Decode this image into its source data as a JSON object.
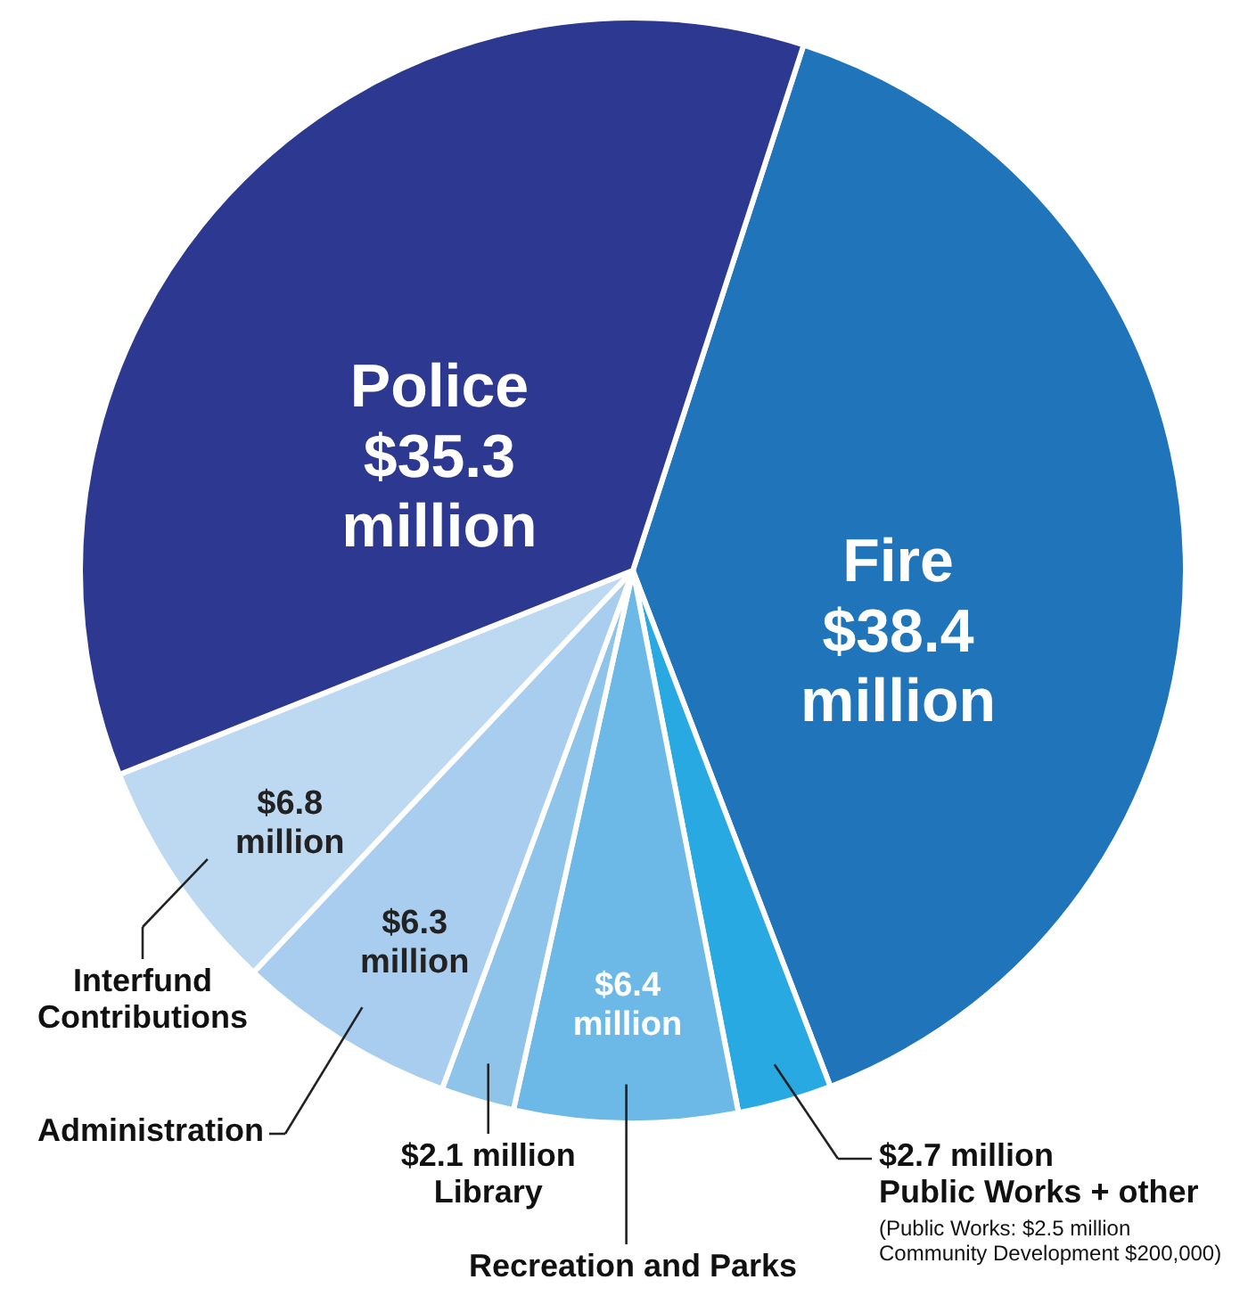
{
  "chart_data": {
    "type": "pie",
    "categories": [
      "Fire",
      "Public Works + other",
      "Recreation and Parks",
      "Library",
      "Administration",
      "Interfund Contributions",
      "Police"
    ],
    "values": [
      38.4,
      2.7,
      6.4,
      2.1,
      6.3,
      6.8,
      35.3
    ],
    "value_labels": [
      "$38.4 million",
      "$2.7 million",
      "$6.4 million",
      "$2.1 million",
      "$6.3 million",
      "$6.8 million",
      "$35.3 million"
    ],
    "colors": [
      "#1f74ba",
      "#29a9e1",
      "#6cb8e6",
      "#8fc4ea",
      "#a9cdee",
      "#bdd8f1",
      "#2d3990"
    ],
    "annotations": [
      "(Public Works: $2.5 million Community Development $200,000)"
    ]
  }
}
